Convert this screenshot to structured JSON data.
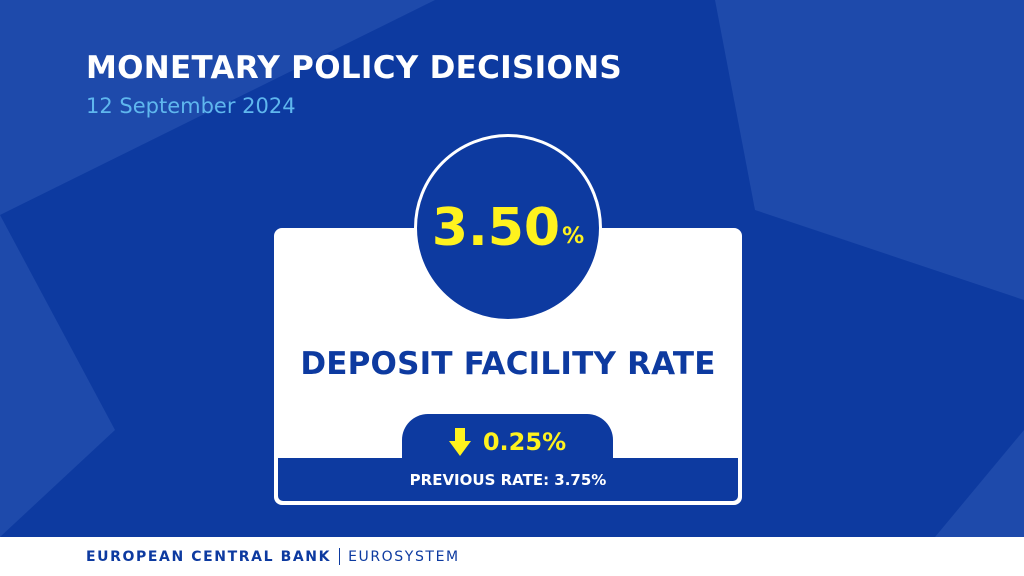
{
  "header": {
    "title": "MONETARY POLICY DECISIONS",
    "date": "12 September 2024"
  },
  "rate": {
    "value": "3.50",
    "unit": "%",
    "name": "DEPOSIT FACILITY RATE",
    "change": "0.25%",
    "change_direction_icon": "arrow-down-icon",
    "previous": "PREVIOUS RATE: 3.75%"
  },
  "footer": {
    "bank": "EUROPEAN CENTRAL BANK",
    "system": "EUROSYSTEM"
  },
  "colors": {
    "primary": "#0d3aa0",
    "background_light": "#1e4aab",
    "accent": "#fff21e",
    "date": "#5fb7ee",
    "white": "#ffffff"
  }
}
